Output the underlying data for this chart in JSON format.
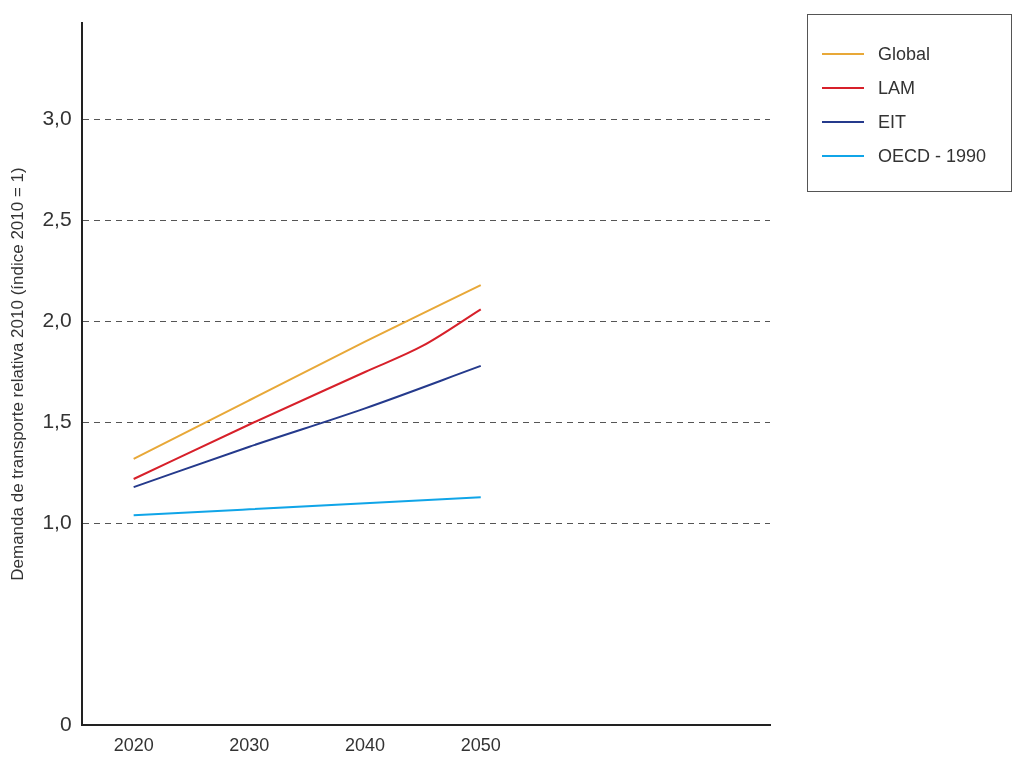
{
  "chart_data": {
    "type": "line",
    "ylabel": "Demanda de transporte relativa 2010 (índice 2010 = 1)",
    "xlim": [
      2015.5,
      2075
    ],
    "xticks": [
      2020,
      2030,
      2040,
      2050
    ],
    "ylim": [
      0,
      3.48
    ],
    "yticks": [
      0,
      {
        "value": 1,
        "label": "1,0"
      },
      {
        "value": 1.5,
        "label": "1,5"
      },
      {
        "value": 2,
        "label": "2,0"
      },
      {
        "value": 2.5,
        "label": "2,5"
      },
      {
        "value": 3,
        "label": "3,0"
      }
    ],
    "grid": "y",
    "legend": "top right",
    "marker": "none",
    "line_style": "solid",
    "series": [
      {
        "name": "Global",
        "color": "#e8a838",
        "x": [
          2020,
          2030,
          2040,
          2050
        ],
        "values": [
          1.32,
          1.61,
          1.9,
          2.18
        ]
      },
      {
        "name": "LAM",
        "color": "#d7202a",
        "x": [
          2020,
          2030,
          2040,
          2045,
          2050
        ],
        "values": [
          1.22,
          1.49,
          1.75,
          1.88,
          2.06
        ]
      },
      {
        "name": "EIT",
        "color": "#253a8c",
        "x": [
          2020,
          2030,
          2040,
          2050
        ],
        "values": [
          1.18,
          1.38,
          1.57,
          1.78
        ]
      },
      {
        "name": "OECD - 1990",
        "color": "#10a5e8",
        "x": [
          2020,
          2030,
          2040,
          2050
        ],
        "values": [
          1.04,
          1.07,
          1.1,
          1.13
        ]
      }
    ]
  }
}
